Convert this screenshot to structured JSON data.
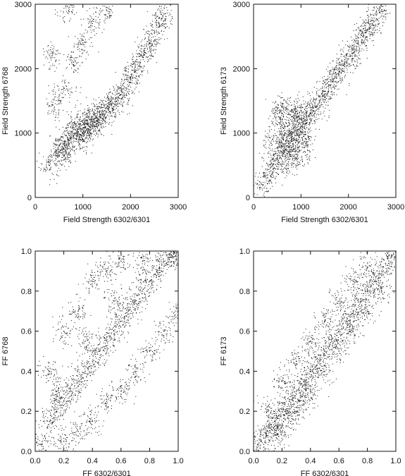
{
  "chart_data": [
    {
      "type": "scatter",
      "title": "",
      "xlabel": "Field Strength 6302/6301",
      "ylabel": "Field Strength 6768",
      "xlim": [
        0,
        3000
      ],
      "ylim": [
        0,
        3000
      ],
      "xticks": [
        "0",
        "1000",
        "2000",
        "3000"
      ],
      "yticks": [
        "0",
        "1000",
        "2000",
        "3000"
      ],
      "grid": false,
      "series": [
        {
          "values": [
            [
              300,
              500
            ],
            [
              450,
              650
            ],
            [
              600,
              750
            ],
            [
              700,
              900
            ],
            [
              800,
              950
            ],
            [
              900,
              1000
            ],
            [
              1000,
              1050
            ],
            [
              1100,
              1000
            ],
            [
              1200,
              1150
            ],
            [
              1300,
              1200
            ],
            [
              500,
              800
            ],
            [
              650,
              700
            ],
            [
              850,
              1100
            ],
            [
              950,
              900
            ],
            [
              1050,
              1200
            ],
            [
              1150,
              1100
            ],
            [
              1250,
              1300
            ],
            [
              1350,
              1250
            ],
            [
              1450,
              1350
            ],
            [
              1550,
              1400
            ],
            [
              1600,
              1450
            ],
            [
              1700,
              1500
            ],
            [
              1800,
              1600
            ],
            [
              1900,
              1700
            ],
            [
              2000,
              1850
            ],
            [
              2100,
              1950
            ],
            [
              2200,
              2100
            ],
            [
              2300,
              2250
            ],
            [
              2400,
              2400
            ],
            [
              2500,
              2550
            ],
            [
              2600,
              2700
            ],
            [
              2700,
              2850
            ],
            [
              400,
              1400
            ],
            [
              600,
              1700
            ],
            [
              800,
              2100
            ],
            [
              1000,
              2400
            ],
            [
              1200,
              2700
            ],
            [
              350,
              2200
            ],
            [
              700,
              2900
            ],
            [
              1500,
              2900
            ]
          ]
        }
      ]
    },
    {
      "type": "scatter",
      "title": "",
      "xlabel": "Field Strength 6302/6301",
      "ylabel": "Field Strength 6173",
      "xlim": [
        0,
        3000
      ],
      "ylim": [
        0,
        3000
      ],
      "xticks": [
        "0",
        "1000",
        "2000",
        "3000"
      ],
      "yticks": [
        "0",
        "1000",
        "2000",
        "3000"
      ],
      "grid": false,
      "series": [
        {
          "values": [
            [
              200,
              200
            ],
            [
              300,
              350
            ],
            [
              400,
              500
            ],
            [
              500,
              600
            ],
            [
              600,
              700
            ],
            [
              700,
              800
            ],
            [
              800,
              900
            ],
            [
              900,
              1000
            ],
            [
              1000,
              1100
            ],
            [
              1100,
              1200
            ],
            [
              1200,
              1300
            ],
            [
              1300,
              1400
            ],
            [
              1400,
              1500
            ],
            [
              1500,
              1650
            ],
            [
              1600,
              1750
            ],
            [
              1700,
              1850
            ],
            [
              1800,
              1950
            ],
            [
              1900,
              2050
            ],
            [
              2000,
              2150
            ],
            [
              2100,
              2250
            ],
            [
              2200,
              2400
            ],
            [
              2300,
              2500
            ],
            [
              2400,
              2600
            ],
            [
              2500,
              2700
            ],
            [
              2600,
              2850
            ],
            [
              2700,
              3000
            ],
            [
              500,
              1300
            ],
            [
              600,
              1400
            ],
            [
              800,
              1350
            ],
            [
              1000,
              1350
            ],
            [
              700,
              500
            ],
            [
              900,
              600
            ],
            [
              1100,
              800
            ],
            [
              400,
              900
            ],
            [
              650,
              1100
            ],
            [
              850,
              750
            ],
            [
              950,
              1250
            ],
            [
              550,
              850
            ],
            [
              750,
              1000
            ],
            [
              1050,
              950
            ]
          ]
        }
      ]
    },
    {
      "type": "scatter",
      "title": "",
      "xlabel": "FF 6302/6301",
      "ylabel": "FF 6768",
      "xlim": [
        0,
        1
      ],
      "ylim": [
        0,
        1
      ],
      "xticks": [
        "0.0",
        "0.2",
        "0.4",
        "0.6",
        "0.8",
        "1.0"
      ],
      "yticks": [
        "0.0",
        "0.2",
        "0.4",
        "0.6",
        "0.8",
        "1.0"
      ],
      "grid": false,
      "series": [
        {
          "values": [
            [
              0.05,
              0.05
            ],
            [
              0.1,
              0.15
            ],
            [
              0.15,
              0.2
            ],
            [
              0.2,
              0.25
            ],
            [
              0.25,
              0.3
            ],
            [
              0.3,
              0.35
            ],
            [
              0.35,
              0.4
            ],
            [
              0.4,
              0.45
            ],
            [
              0.45,
              0.5
            ],
            [
              0.5,
              0.55
            ],
            [
              0.55,
              0.6
            ],
            [
              0.6,
              0.65
            ],
            [
              0.65,
              0.7
            ],
            [
              0.7,
              0.75
            ],
            [
              0.75,
              0.8
            ],
            [
              0.8,
              0.85
            ],
            [
              0.85,
              0.9
            ],
            [
              0.9,
              0.95
            ],
            [
              0.95,
              0.97
            ],
            [
              1.0,
              0.98
            ],
            [
              0.1,
              0.4
            ],
            [
              0.2,
              0.6
            ],
            [
              0.3,
              0.7
            ],
            [
              0.4,
              0.85
            ],
            [
              0.5,
              0.9
            ],
            [
              0.6,
              0.95
            ],
            [
              0.3,
              0.1
            ],
            [
              0.5,
              0.25
            ],
            [
              0.7,
              0.4
            ],
            [
              0.9,
              0.6
            ],
            [
              0.2,
              0.05
            ],
            [
              0.4,
              0.15
            ],
            [
              0.6,
              0.3
            ],
            [
              0.8,
              0.5
            ],
            [
              1.0,
              0.7
            ],
            [
              0.15,
              0.3
            ],
            [
              0.35,
              0.55
            ],
            [
              0.55,
              0.75
            ],
            [
              0.75,
              0.95
            ],
            [
              0.98,
              1.0
            ]
          ]
        }
      ]
    },
    {
      "type": "scatter",
      "title": "",
      "xlabel": "FF 6302/6301",
      "ylabel": "FF 6173",
      "xlim": [
        0,
        1
      ],
      "ylim": [
        0,
        1
      ],
      "xticks": [
        "0.0",
        "0.2",
        "0.4",
        "0.6",
        "0.8",
        "1.0"
      ],
      "yticks": [
        "0.0",
        "0.2",
        "0.4",
        "0.6",
        "0.8",
        "1.0"
      ],
      "grid": false,
      "series": [
        {
          "values": [
            [
              0.0,
              0.0
            ],
            [
              0.05,
              0.05
            ],
            [
              0.1,
              0.1
            ],
            [
              0.15,
              0.15
            ],
            [
              0.2,
              0.2
            ],
            [
              0.25,
              0.25
            ],
            [
              0.3,
              0.3
            ],
            [
              0.35,
              0.35
            ],
            [
              0.4,
              0.4
            ],
            [
              0.45,
              0.45
            ],
            [
              0.5,
              0.5
            ],
            [
              0.55,
              0.55
            ],
            [
              0.6,
              0.6
            ],
            [
              0.65,
              0.65
            ],
            [
              0.7,
              0.7
            ],
            [
              0.75,
              0.75
            ],
            [
              0.8,
              0.8
            ],
            [
              0.85,
              0.85
            ],
            [
              0.9,
              0.9
            ],
            [
              0.95,
              0.95
            ],
            [
              1.0,
              1.0
            ],
            [
              0.1,
              0.2
            ],
            [
              0.2,
              0.35
            ],
            [
              0.3,
              0.45
            ],
            [
              0.4,
              0.55
            ],
            [
              0.5,
              0.65
            ],
            [
              0.6,
              0.75
            ],
            [
              0.7,
              0.85
            ],
            [
              0.8,
              0.92
            ],
            [
              0.2,
              0.1
            ],
            [
              0.3,
              0.2
            ],
            [
              0.4,
              0.3
            ],
            [
              0.5,
              0.4
            ],
            [
              0.6,
              0.5
            ],
            [
              0.7,
              0.6
            ],
            [
              0.8,
              0.7
            ],
            [
              0.9,
              0.8
            ],
            [
              0.15,
              0.08
            ],
            [
              0.25,
              0.18
            ],
            [
              0.35,
              0.25
            ]
          ]
        }
      ]
    }
  ]
}
